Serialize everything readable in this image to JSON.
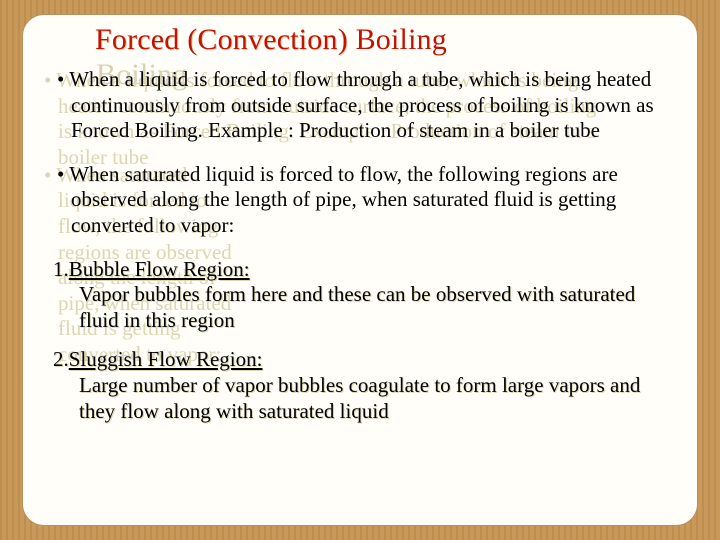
{
  "colors": {
    "frame_background": "#c89858",
    "panel_background": "#fffef9",
    "panel_border": "#b89060",
    "title_color": "#c41200",
    "text_color": "#000000",
    "text_shadow": "#dcd6b4"
  },
  "typography": {
    "font_family": "Times New Roman",
    "title_fontsize": 30,
    "body_fontsize": 21
  },
  "title": "Forced (Convection) Boiling",
  "bullets": [
    "When a liquid is forced to flow through a tube, which is being heated continuously from outside surface, the process of boiling is known as Forced Boiling. Example : Production of steam in a boiler tube",
    "When saturated liquid is forced to flow, the following regions are observed along the length of pipe, when saturated fluid is getting converted to vapor:"
  ],
  "regions": [
    {
      "num": "1.",
      "heading": "Bubble Flow Region:",
      "body": "Vapor bubbles form here and these can be observed with saturated fluid in this region"
    },
    {
      "num": "2.",
      "heading": "Sluggish Flow Region:",
      "body": "Large number of vapor bubbles coagulate to form large vapors and they flow along with saturated liquid"
    }
  ]
}
